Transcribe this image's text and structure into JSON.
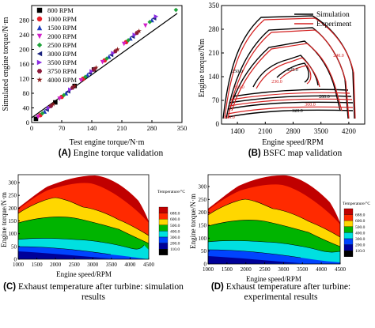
{
  "chart_data": [
    {
      "type": "scatter",
      "panel_label": "(A)",
      "caption": "Engine torque validation",
      "xlabel": "Test engine torque/N·m",
      "ylabel": "Simulated engine torque/N·m",
      "xlim": [
        0,
        350
      ],
      "ylim": [
        0,
        320
      ],
      "xticks": [
        "0",
        "70",
        "140",
        "210",
        "280",
        "350"
      ],
      "yticks": [
        "0",
        "40",
        "80",
        "120",
        "160",
        "200",
        "240",
        "280"
      ],
      "series": [
        {
          "name": "800 RPM",
          "color": "#000000",
          "marker": "square",
          "x": [
            10,
            55,
            100,
            145
          ],
          "y": [
            10,
            55,
            100,
            145
          ]
        },
        {
          "name": "1000 RPM",
          "color": "#e8202a",
          "marker": "circle",
          "x": [
            20,
            70,
            120,
            170,
            220
          ],
          "y": [
            20,
            70,
            120,
            170,
            220
          ]
        },
        {
          "name": "1500 RPM",
          "color": "#1f3dbd",
          "marker": "triangle-up",
          "x": [
            30,
            80,
            130,
            180,
            230,
            280
          ],
          "y": [
            30,
            80,
            130,
            180,
            230,
            280
          ]
        },
        {
          "name": "2000 RPM",
          "color": "#d020c8",
          "marker": "triangle-down",
          "x": [
            15,
            65,
            115,
            165,
            215,
            265
          ],
          "y": [
            15,
            65,
            115,
            165,
            215,
            265
          ]
        },
        {
          "name": "2500 RPM",
          "color": "#1fa33a",
          "marker": "diamond",
          "x": [
            25,
            75,
            125,
            175,
            225,
            275,
            336
          ],
          "y": [
            25,
            75,
            125,
            175,
            225,
            275,
            308
          ]
        },
        {
          "name": "3000 RPM",
          "color": "#1a237e",
          "marker": "triangle-left",
          "x": [
            35,
            85,
            135,
            185,
            235,
            285
          ],
          "y": [
            35,
            85,
            135,
            185,
            235,
            285
          ]
        },
        {
          "name": "3500 RPM",
          "color": "#8a2be2",
          "marker": "triangle-right",
          "x": [
            40,
            90,
            140,
            190,
            240,
            290
          ],
          "y": [
            40,
            90,
            140,
            190,
            240,
            290
          ]
        },
        {
          "name": "3750 RPM",
          "color": "#8b1a3a",
          "marker": "hexagon",
          "x": [
            45,
            95,
            145,
            195,
            245
          ],
          "y": [
            45,
            95,
            145,
            195,
            245
          ]
        },
        {
          "name": "4000 RPM",
          "color": "#8b1a1a",
          "marker": "star",
          "x": [
            50,
            100,
            150,
            200,
            250
          ],
          "y": [
            50,
            100,
            150,
            200,
            250
          ]
        }
      ]
    },
    {
      "type": "contour",
      "panel_label": "(B)",
      "caption": "BSFC map validation",
      "xlabel": "Engine speed/RPM",
      "ylabel": "Engine torque/Nm",
      "xlim": [
        1000,
        4600
      ],
      "ylim": [
        0,
        350
      ],
      "xticks": [
        "1400",
        "2100",
        "2800",
        "3500",
        "4200"
      ],
      "yticks": [
        "0",
        "70",
        "140",
        "210",
        "280",
        "350"
      ],
      "series": [
        {
          "name": "Simulation",
          "color": "#000000"
        },
        {
          "name": "Experiment",
          "color": "#d42020"
        }
      ],
      "contour_labels": [
        "240.0",
        "225.0",
        "230.0",
        "250.0",
        "260.0",
        "280.0",
        "300.0",
        "320.0",
        "340.0"
      ]
    },
    {
      "type": "heatmap",
      "panel_label": "(C)",
      "caption": "Exhaust temperature after turbine: simulation results",
      "xlabel": "Engine speed/RPM",
      "ylabel": "Engine torque/N·m",
      "xticks": [
        "1000",
        "1500",
        "2000",
        "2500",
        "3000",
        "3500",
        "4000",
        "4500"
      ],
      "yticks": [
        "0",
        "50",
        "100",
        "150",
        "200",
        "250",
        "300"
      ],
      "colorbar_title": "Temperature/°C",
      "levels": [
        "688.0",
        "600.0",
        "500.0",
        "400.0",
        "300.0",
        "200.0",
        "110.0"
      ],
      "level_colors": [
        "#c00000",
        "#ff2a00",
        "#ffd700",
        "#00b400",
        "#00e0e0",
        "#0044ff",
        "#000099",
        "#000000"
      ]
    },
    {
      "type": "heatmap",
      "panel_label": "(D)",
      "caption": "Exhaust temperature after turbine: experimental results",
      "xlabel": "Engine speed/RPM",
      "ylabel": "Engine torque/N·m",
      "xticks": [
        "1000",
        "1500",
        "2000",
        "2500",
        "3000",
        "3500",
        "4000",
        "4500"
      ],
      "yticks": [
        "0",
        "50",
        "100",
        "150",
        "200",
        "250",
        "300"
      ],
      "colorbar_title": "Temperature/°C",
      "levels": [
        "688.0",
        "600.0",
        "500.0",
        "400.0",
        "300.0",
        "200.0",
        "110.0"
      ],
      "level_colors": [
        "#c00000",
        "#ff2a00",
        "#ffd700",
        "#00b400",
        "#00e0e0",
        "#0044ff",
        "#000099",
        "#000000"
      ]
    }
  ]
}
